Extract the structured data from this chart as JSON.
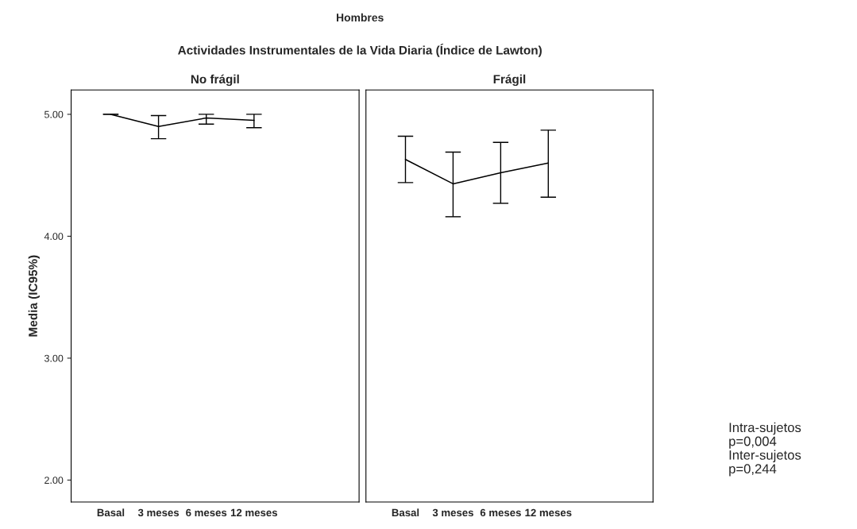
{
  "chart_data": [
    {
      "type": "line",
      "title": "No frágil",
      "ylabel": "Media (IC95%)",
      "categories": [
        "Basal",
        "3 meses",
        "6 meses",
        "12 meses"
      ],
      "series": [
        {
          "color": "#000000",
          "values": [
            5.0,
            4.9,
            4.97,
            4.95
          ],
          "errors": [
            [
              5.0,
              5.0
            ],
            [
              4.8,
              4.99
            ],
            [
              4.92,
              5.0
            ],
            [
              4.89,
              5.0
            ]
          ]
        }
      ],
      "ylim": [
        1.82,
        5.2
      ],
      "yticks": [
        {
          "value": 2,
          "label": "2.00"
        },
        {
          "value": 3,
          "label": "3.00"
        },
        {
          "value": 4,
          "label": "4.00"
        },
        {
          "value": 5,
          "label": "5.00"
        }
      ],
      "grid": false,
      "marker": "none",
      "line_style": "solid",
      "annotations": [
        "Hombres",
        "Actividades Instrumentales de la Vida Diaria (Índice de Lawton)"
      ]
    },
    {
      "type": "line",
      "title": "Frágil",
      "categories": [
        "Basal",
        "3 meses",
        "6 meses",
        "12 meses"
      ],
      "series": [
        {
          "color": "#000000",
          "values": [
            4.63,
            4.43,
            4.52,
            4.6
          ],
          "errors": [
            [
              4.44,
              4.82
            ],
            [
              4.16,
              4.69
            ],
            [
              4.27,
              4.77
            ],
            [
              4.32,
              4.87
            ]
          ]
        }
      ],
      "ylim": [
        1.82,
        5.2
      ],
      "tick_labels": "x",
      "grid": false,
      "marker": "none",
      "line_style": "solid",
      "annotations": [
        "Intra-sujetos\np=0,004\nInter-sujetos\np=0,244"
      ]
    }
  ]
}
